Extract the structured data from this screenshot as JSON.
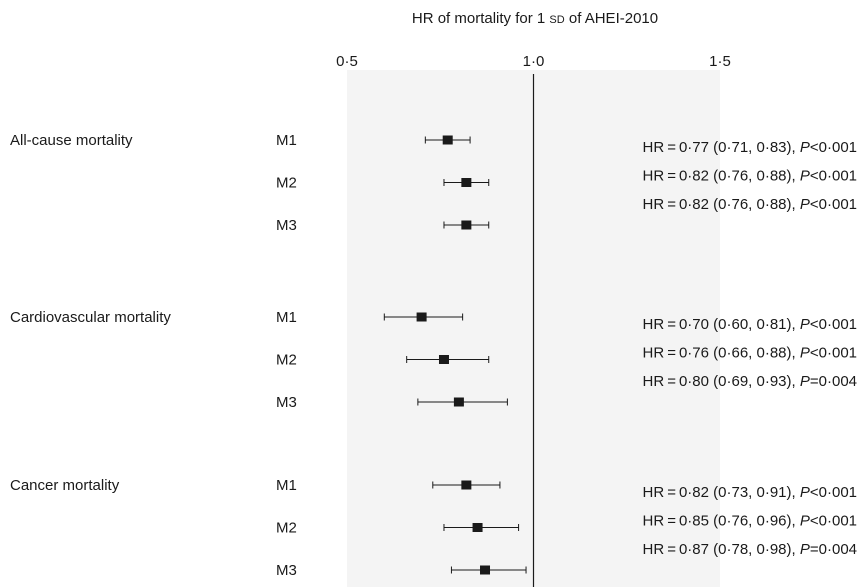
{
  "title": {
    "prefix": "HR of mortality for 1",
    "unit": "SD",
    "suffix": "of AHEI-2010"
  },
  "chart_data": {
    "type": "forest",
    "xlim": [
      0.5,
      1.5
    ],
    "x_ticks": [
      "0·5",
      "1·0",
      "1·5"
    ],
    "x_tick_values": [
      0.5,
      1.0,
      1.5
    ],
    "reference_line": 1.0,
    "colors": {
      "panel": "#f4f4f4",
      "marker": "#1a1a1a",
      "line": "#1a1a1a"
    },
    "groups": [
      {
        "label": "All-cause mortality",
        "models": [
          {
            "label": "M1",
            "hr": 0.77,
            "lo": 0.71,
            "hi": 0.83
          },
          {
            "label": "M2",
            "hr": 0.82,
            "lo": 0.76,
            "hi": 0.88
          },
          {
            "label": "M3",
            "hr": 0.82,
            "lo": 0.76,
            "hi": 0.88
          }
        ],
        "stats": [
          {
            "hr": "0·77",
            "ci": "(0·71, 0·83)",
            "p_op": "<",
            "p_val": "0·001"
          },
          {
            "hr": "0·82",
            "ci": "(0·76, 0·88)",
            "p_op": "<",
            "p_val": "0·001"
          },
          {
            "hr": "0·82",
            "ci": "(0·76, 0·88)",
            "p_op": "<",
            "p_val": "0·001"
          }
        ]
      },
      {
        "label": "Cardiovascular mortality",
        "models": [
          {
            "label": "M1",
            "hr": 0.7,
            "lo": 0.6,
            "hi": 0.81
          },
          {
            "label": "M2",
            "hr": 0.76,
            "lo": 0.66,
            "hi": 0.88
          },
          {
            "label": "M3",
            "hr": 0.8,
            "lo": 0.69,
            "hi": 0.93
          }
        ],
        "stats": [
          {
            "hr": "0·70",
            "ci": "(0·60, 0·81)",
            "p_op": "<",
            "p_val": "0·001"
          },
          {
            "hr": "0·76",
            "ci": "(0·66, 0·88)",
            "p_op": "<",
            "p_val": "0·001"
          },
          {
            "hr": "0·80",
            "ci": "(0·69, 0·93)",
            "p_op": "=",
            "p_val": "0·004"
          }
        ]
      },
      {
        "label": "Cancer mortality",
        "models": [
          {
            "label": "M1",
            "hr": 0.82,
            "lo": 0.73,
            "hi": 0.91
          },
          {
            "label": "M2",
            "hr": 0.85,
            "lo": 0.76,
            "hi": 0.96
          },
          {
            "label": "M3",
            "hr": 0.87,
            "lo": 0.78,
            "hi": 0.98
          }
        ],
        "stats": [
          {
            "hr": "0·82",
            "ci": "(0·73, 0·91)",
            "p_op": "<",
            "p_val": "0·001"
          },
          {
            "hr": "0·85",
            "ci": "(0·76, 0·96)",
            "p_op": "<",
            "p_val": "0·001"
          },
          {
            "hr": "0·87",
            "ci": "(0·78, 0·98)",
            "p_op": "=",
            "p_val": "0·004"
          }
        ]
      }
    ]
  }
}
